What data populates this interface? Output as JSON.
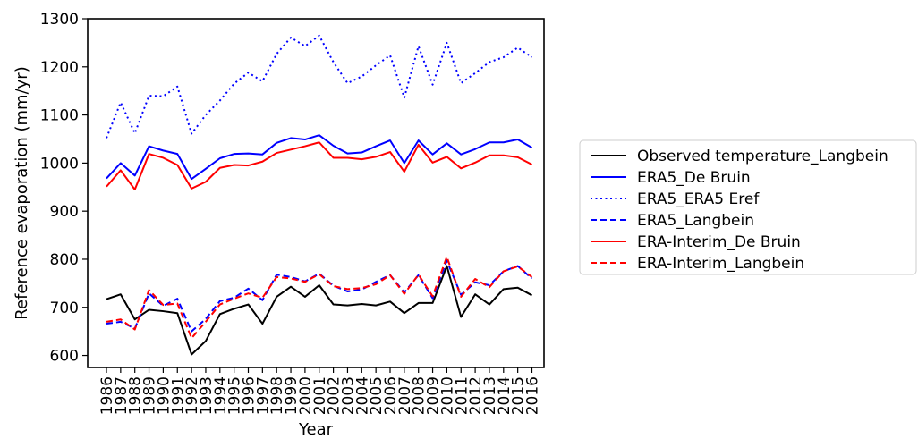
{
  "chart_data": {
    "type": "line",
    "title": "",
    "xlabel": "Year",
    "ylabel": "Reference evaporation (mm/yr)",
    "ylim": [
      575,
      1300
    ],
    "yticks": [
      600,
      700,
      800,
      900,
      1000,
      1100,
      1200,
      1300
    ],
    "x": [
      "1986",
      "1987",
      "1988",
      "1989",
      "1990",
      "1991",
      "1992",
      "1993",
      "1994",
      "1995",
      "1996",
      "1997",
      "1998",
      "1999",
      "2000",
      "2001",
      "2002",
      "2003",
      "2004",
      "2005",
      "2006",
      "2007",
      "2008",
      "2009",
      "2010",
      "2011",
      "2012",
      "2013",
      "2014",
      "2015",
      "2016"
    ],
    "grid": false,
    "legend_position": "right, outside plot",
    "series": [
      {
        "name": "Observed temperature_Langbein",
        "color": "#000000",
        "dash": "solid",
        "values": [
          717,
          727,
          675,
          695,
          692,
          688,
          602,
          630,
          686,
          697,
          706,
          666,
          722,
          743,
          722,
          746,
          706,
          704,
          707,
          704,
          712,
          688,
          709,
          709,
          786,
          680,
          727,
          706,
          738,
          741,
          725
        ]
      },
      {
        "name": "ERA5_De Bruin",
        "color": "#0000ff",
        "dash": "solid",
        "values": [
          968,
          1000,
          974,
          1035,
          1026,
          1019,
          967,
          988,
          1010,
          1019,
          1020,
          1018,
          1042,
          1052,
          1049,
          1058,
          1036,
          1020,
          1022,
          1035,
          1047,
          1000,
          1047,
          1018,
          1041,
          1018,
          1029,
          1043,
          1043,
          1049,
          1032
        ]
      },
      {
        "name": "ERA5_ERA5 Eref",
        "color": "#0000ff",
        "dash": "dotted",
        "values": [
          1052,
          1126,
          1062,
          1140,
          1139,
          1159,
          1061,
          1100,
          1130,
          1165,
          1188,
          1170,
          1227,
          1261,
          1243,
          1265,
          1210,
          1166,
          1180,
          1203,
          1224,
          1136,
          1243,
          1163,
          1250,
          1166,
          1187,
          1210,
          1220,
          1240,
          1220
        ]
      },
      {
        "name": "ERA5_Langbein",
        "color": "#0000ff",
        "dash": "dashed",
        "values": [
          666,
          670,
          656,
          729,
          703,
          718,
          650,
          676,
          713,
          720,
          739,
          715,
          768,
          763,
          754,
          770,
          745,
          733,
          737,
          753,
          767,
          731,
          767,
          719,
          797,
          726,
          752,
          746,
          775,
          786,
          760
        ]
      },
      {
        "name": "ERA-Interim_De Bruin",
        "color": "#ff0000",
        "dash": "solid",
        "values": [
          951,
          985,
          945,
          1019,
          1011,
          996,
          947,
          961,
          990,
          996,
          995,
          1003,
          1021,
          1028,
          1035,
          1043,
          1011,
          1011,
          1008,
          1013,
          1023,
          982,
          1038,
          1001,
          1013,
          989,
          1001,
          1016,
          1016,
          1012,
          997
        ]
      },
      {
        "name": "ERA-Interim_Langbein",
        "color": "#ff0000",
        "dash": "dashed",
        "values": [
          670,
          675,
          654,
          736,
          705,
          708,
          636,
          670,
          706,
          718,
          729,
          720,
          763,
          760,
          753,
          769,
          744,
          738,
          740,
          748,
          767,
          728,
          768,
          723,
          805,
          722,
          759,
          742,
          775,
          785,
          763
        ]
      }
    ]
  }
}
